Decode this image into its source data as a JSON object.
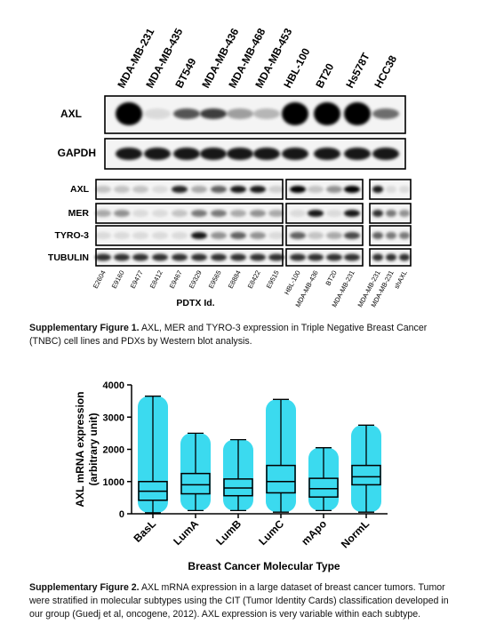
{
  "figure1": {
    "cell_lines": [
      "MDA-MB-231",
      "MDA-MB-435",
      "BT549",
      "MDA-MB-436",
      "MDA-MB-468",
      "MDA-MB-453",
      "HBL-100",
      "BT20",
      "Hs578T",
      "HCC38"
    ],
    "top_rows": [
      "AXL",
      "GAPDH"
    ],
    "bottom_rows": [
      "AXL",
      "MER",
      "TYRO-3",
      "TUBULIN"
    ],
    "pdtx_lanes": [
      "E2604",
      "E9160",
      "E9477",
      "E8412",
      "E9467",
      "E9329",
      "E9565",
      "E8884",
      "E8422",
      "E9515"
    ],
    "cell_lanes": [
      "HBL-100",
      "MDA-MB-436",
      "BT20",
      "MDA-MB-231"
    ],
    "shaxl_lanes": [
      "MDA-MB-231",
      "MDA-MB-231",
      "shAXL"
    ],
    "pdtx_label": "PDTX Id.",
    "caption_label": "Supplementary Figure 1.",
    "caption_text": "AXL, MER and TYRO-3 expression in Triple Negative Breast Cancer (TNBC) cell lines and PDXs by Western blot analysis."
  },
  "chart_data": {
    "type": "box",
    "ylabel": [
      "AXL mRNA expression",
      "(arbitrary unit)"
    ],
    "xlabel": "Breast Cancer Molecular Type",
    "categories": [
      "BasL",
      "LumA",
      "LumB",
      "LumC",
      "mApo",
      "NormL"
    ],
    "stats": [
      {
        "min": 30,
        "q1": 420,
        "median": 700,
        "q3": 1000,
        "max": 3650
      },
      {
        "min": 100,
        "q1": 620,
        "median": 900,
        "q3": 1250,
        "max": 2500
      },
      {
        "min": 100,
        "q1": 560,
        "median": 800,
        "q3": 1080,
        "max": 2300
      },
      {
        "min": 50,
        "q1": 650,
        "median": 1000,
        "q3": 1500,
        "max": 3550
      },
      {
        "min": 100,
        "q1": 520,
        "median": 780,
        "q3": 1100,
        "max": 2050
      },
      {
        "min": 50,
        "q1": 900,
        "median": 1150,
        "q3": 1500,
        "max": 2750
      }
    ],
    "point_color": "#19d3ec",
    "box_color": "#000000",
    "ylim": [
      0,
      4000
    ],
    "yticks": [
      0,
      1000,
      2000,
      3000,
      4000
    ]
  },
  "figure2": {
    "caption_label": "Supplementary Figure 2.",
    "caption_text": "AXL mRNA expression in a large dataset of breast cancer tumors. Tumor were stratified in molecular subtypes using the CIT (Tumor Identity Cards) classification developed in our group (Guedj et al, oncogene, 2012). AXL expression is very variable within each subtype."
  }
}
